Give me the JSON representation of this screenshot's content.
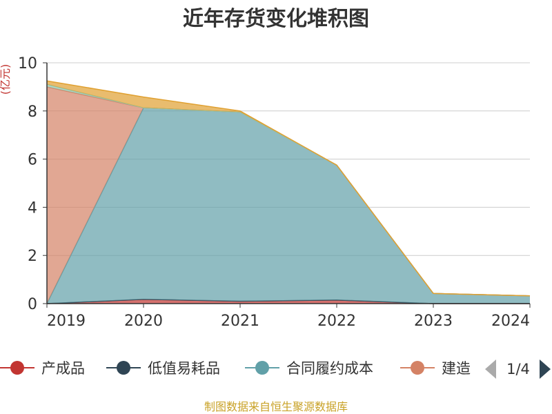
{
  "chart_data": {
    "type": "area",
    "title": "近年存货变化堆积图",
    "unit": "(亿元)",
    "x": [
      "2019",
      "2020",
      "2021",
      "2022",
      "2023",
      "2024"
    ],
    "y_ticks": [
      "0",
      "2",
      "4",
      "6",
      "8",
      "10"
    ],
    "ylim": [
      0,
      10
    ],
    "grid": true,
    "stacked": true,
    "series": [
      {
        "name": "产成品",
        "color": "#c23531",
        "values": [
          0.0,
          0.18,
          0.1,
          0.15,
          0.0,
          0.0
        ]
      },
      {
        "name": "低值易耗品",
        "color": "#2f4554",
        "values": [
          0.0,
          0.0,
          0.0,
          0.0,
          0.0,
          0.0
        ]
      },
      {
        "name": "合同履约成本",
        "color": "#61a0a8",
        "values": [
          0.0,
          7.95,
          7.85,
          5.6,
          0.42,
          0.32
        ]
      },
      {
        "name": "建造",
        "color": "#d48265",
        "values": [
          9.0,
          0.0,
          0.0,
          0.0,
          0.0,
          0.0
        ]
      },
      {
        "name": "",
        "color": "#91c7ae",
        "values": [
          0.1,
          0.0,
          0.0,
          0.0,
          0.0,
          0.0
        ]
      },
      {
        "name": "",
        "color": "#e0a030",
        "values": [
          0.15,
          0.45,
          0.05,
          0.0,
          0.0,
          0.0
        ]
      }
    ]
  },
  "legend": {
    "items": [
      "产成品",
      "低值易耗品",
      "合同履约成本",
      "建造"
    ],
    "page": "1/4"
  },
  "source": "制图数据来自恒生聚源数据库"
}
